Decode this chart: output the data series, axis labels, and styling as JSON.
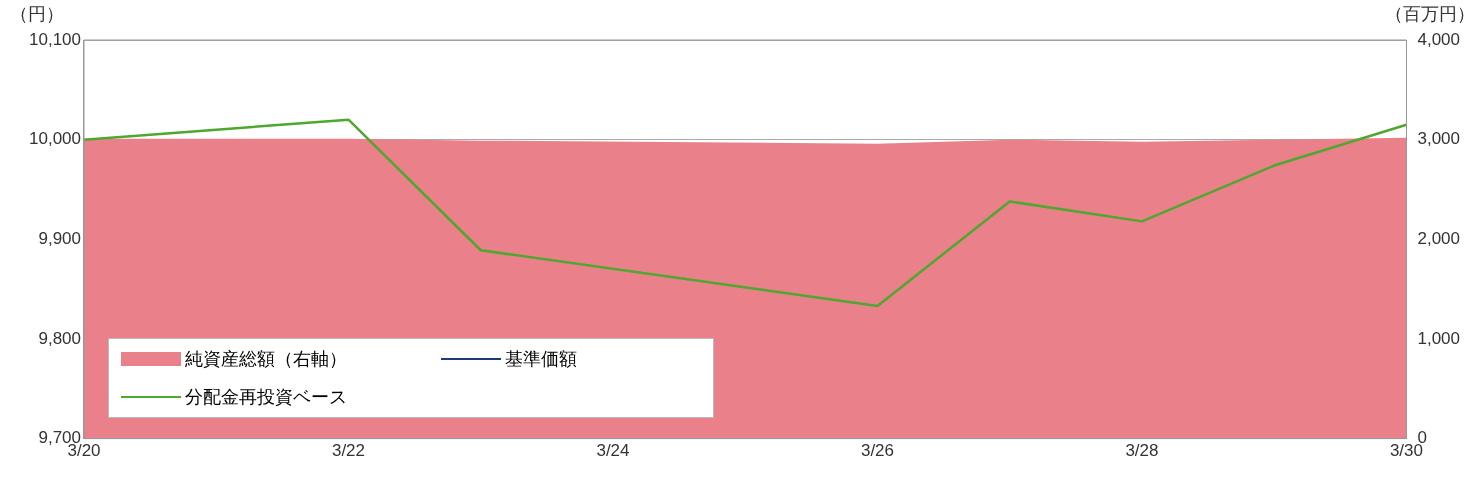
{
  "chart_data": {
    "type": "line",
    "ylabel": "（円）",
    "y2label": "（百万円）",
    "x": [
      "--03-20",
      "--03-22",
      "--03-23",
      "--03-26",
      "--03-27",
      "--03-28",
      "--03-29",
      "--03-30"
    ],
    "series": [
      {
        "name": "純資産総額（右軸）",
        "type": "area",
        "axis": "y2",
        "color": "#ea8089",
        "values": [
          3010,
          3010,
          2990,
          2960,
          3000,
          2980,
          3000,
          3020
        ]
      },
      {
        "name": "基準価額",
        "color": "#1f3a7a",
        "values": [
          null,
          null,
          null,
          null,
          null,
          null,
          null,
          null
        ]
      },
      {
        "name": "分配金再投資ベース",
        "color": "#4ea72e",
        "values": [
          10000,
          10020,
          9889,
          9833,
          9938,
          9918,
          9974,
          10015
        ]
      }
    ],
    "xlim": [
      "--03-20",
      "--03-30"
    ],
    "xticks": [
      {
        "value": "--03-20",
        "label": "3/20"
      },
      {
        "value": "--03-22",
        "label": "3/22"
      },
      {
        "value": "--03-24",
        "label": "3/24"
      },
      {
        "value": "--03-26",
        "label": "3/26"
      },
      {
        "value": "--03-28",
        "label": "3/28"
      },
      {
        "value": "--03-30",
        "label": "3/30"
      }
    ],
    "ylim": [
      9700,
      10100
    ],
    "yticks": [
      {
        "value": 9700,
        "label": "9,700"
      },
      {
        "value": 9800,
        "label": "9,800"
      },
      {
        "value": 9900,
        "label": "9,900"
      },
      {
        "value": 10000,
        "label": "10,000"
      },
      {
        "value": 10100,
        "label": "10,100"
      }
    ],
    "y2lim": [
      0,
      4000
    ],
    "y2ticks": [
      0,
      {
        "value": 1000,
        "label": "1,000"
      },
      {
        "value": 2000,
        "label": "2,000"
      },
      {
        "value": 3000,
        "label": "3,000"
      },
      {
        "value": 4000,
        "label": "4,000"
      }
    ],
    "grid": "y",
    "legend": "bottom left",
    "marker": "none",
    "line_style": "solid"
  }
}
